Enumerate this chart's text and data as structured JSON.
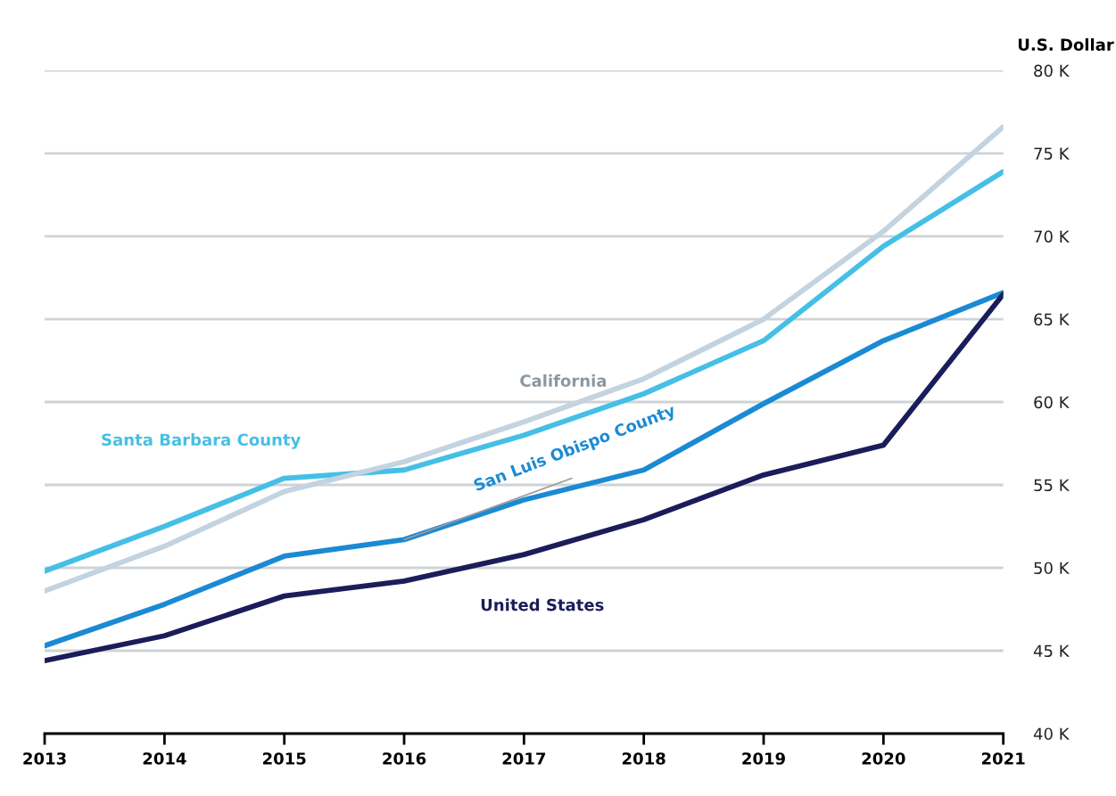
{
  "chart_data": {
    "type": "line",
    "ylabel": "U.S. Dollar",
    "x": [
      2013,
      2014,
      2015,
      2016,
      2017,
      2018,
      2019,
      2020,
      2021
    ],
    "xlim": [
      2013,
      2021
    ],
    "xticks": [
      2013,
      2014,
      2015,
      2016,
      2017,
      2018,
      2019,
      2020,
      2021
    ],
    "ylim": [
      40000,
      80000
    ],
    "yticks": [
      {
        "value": 40000,
        "label": "40 K"
      },
      {
        "value": 45000,
        "label": "45 K"
      },
      {
        "value": 50000,
        "label": "50 K"
      },
      {
        "value": 55000,
        "label": "55 K"
      },
      {
        "value": 60000,
        "label": "60 K"
      },
      {
        "value": 65000,
        "label": "65 K"
      },
      {
        "value": 70000,
        "label": "70 K"
      },
      {
        "value": 75000,
        "label": "75 K"
      },
      {
        "value": 80000,
        "label": "80 K"
      }
    ],
    "grid": "y",
    "marker": "none",
    "line_style": "solid",
    "series": [
      {
        "name": "Santa Barbara County",
        "color": "#45bfe6",
        "values": [
          49800,
          52500,
          55400,
          55900,
          58000,
          60500,
          63700,
          69400,
          73900
        ]
      },
      {
        "name": "California",
        "color": "#c3d3e0",
        "values": [
          48600,
          51300,
          54600,
          56400,
          58800,
          61400,
          65000,
          70300,
          76600
        ]
      },
      {
        "name": "San Luis Obispo County",
        "color": "#1b8ad4",
        "values": [
          45300,
          47800,
          50700,
          51700,
          54100,
          55900,
          59900,
          63700,
          66600
        ]
      },
      {
        "name": "United States",
        "color": "#1b1d5a",
        "values": [
          44400,
          45900,
          48300,
          49200,
          50800,
          52900,
          55600,
          57400,
          66500
        ]
      },
      {
        "color": "#9a9a9a",
        "x": [
          2016,
          2017.4
        ],
        "values": [
          51700,
          55400
        ]
      }
    ]
  }
}
